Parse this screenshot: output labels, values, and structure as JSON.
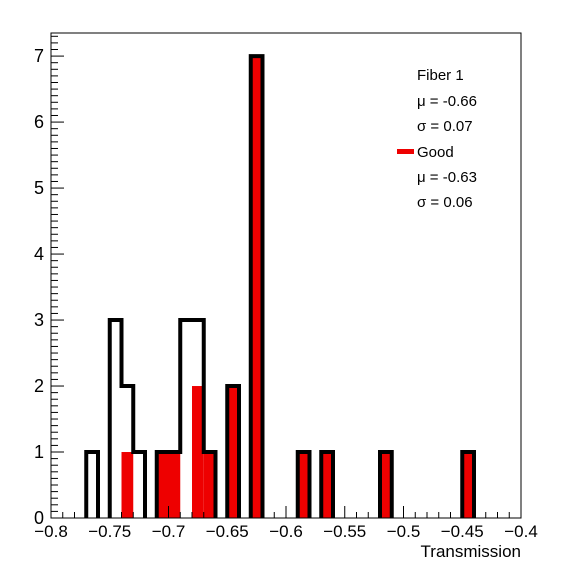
{
  "chart_data": {
    "type": "bar",
    "xlabel": "Transmission",
    "ylabel": "",
    "xlim": [
      -0.8,
      -0.4
    ],
    "ylim": [
      0,
      7.35
    ],
    "bin_width": 0.01,
    "x_ticks": [
      "-0.8",
      "-0.75",
      "-0.7",
      "-0.65",
      "-0.6",
      "-0.55",
      "-0.5",
      "-0.45",
      "-0.4"
    ],
    "y_ticks": [
      "0",
      "1",
      "2",
      "3",
      "4",
      "5",
      "6",
      "7"
    ],
    "grid": false,
    "colors": {
      "all": "#000000",
      "good": "#ee0000"
    },
    "series": [
      {
        "name": "Fiber 1",
        "style": "outline",
        "bins": [
          {
            "x0": -0.77,
            "x1": -0.76,
            "value": 1
          },
          {
            "x0": -0.75,
            "x1": -0.74,
            "value": 3
          },
          {
            "x0": -0.74,
            "x1": -0.73,
            "value": 2
          },
          {
            "x0": -0.73,
            "x1": -0.72,
            "value": 1
          },
          {
            "x0": -0.71,
            "x1": -0.7,
            "value": 1
          },
          {
            "x0": -0.7,
            "x1": -0.69,
            "value": 1
          },
          {
            "x0": -0.69,
            "x1": -0.68,
            "value": 3
          },
          {
            "x0": -0.68,
            "x1": -0.67,
            "value": 3
          },
          {
            "x0": -0.67,
            "x1": -0.66,
            "value": 1
          },
          {
            "x0": -0.65,
            "x1": -0.64,
            "value": 2
          },
          {
            "x0": -0.63,
            "x1": -0.62,
            "value": 7
          },
          {
            "x0": -0.59,
            "x1": -0.58,
            "value": 1
          },
          {
            "x0": -0.57,
            "x1": -0.56,
            "value": 1
          },
          {
            "x0": -0.52,
            "x1": -0.51,
            "value": 1
          },
          {
            "x0": -0.45,
            "x1": -0.44,
            "value": 1
          }
        ]
      },
      {
        "name": "Good",
        "style": "filled",
        "bins": [
          {
            "x0": -0.77,
            "x1": -0.76,
            "value": 0
          },
          {
            "x0": -0.74,
            "x1": -0.73,
            "value": 1
          },
          {
            "x0": -0.71,
            "x1": -0.7,
            "value": 1
          },
          {
            "x0": -0.7,
            "x1": -0.69,
            "value": 1
          },
          {
            "x0": -0.68,
            "x1": -0.67,
            "value": 2
          },
          {
            "x0": -0.67,
            "x1": -0.66,
            "value": 1
          },
          {
            "x0": -0.65,
            "x1": -0.64,
            "value": 2
          },
          {
            "x0": -0.63,
            "x1": -0.62,
            "value": 7
          },
          {
            "x0": -0.59,
            "x1": -0.58,
            "value": 1
          },
          {
            "x0": -0.57,
            "x1": -0.56,
            "value": 1
          },
          {
            "x0": -0.52,
            "x1": -0.51,
            "value": 1
          },
          {
            "x0": -0.45,
            "x1": -0.44,
            "value": 1
          }
        ]
      }
    ],
    "legend": {
      "placement": "top-right",
      "lines": [
        "Fiber 1",
        "μ = -0.66",
        "σ = 0.07",
        "Good",
        "μ = -0.63",
        "σ = 0.06"
      ]
    }
  }
}
